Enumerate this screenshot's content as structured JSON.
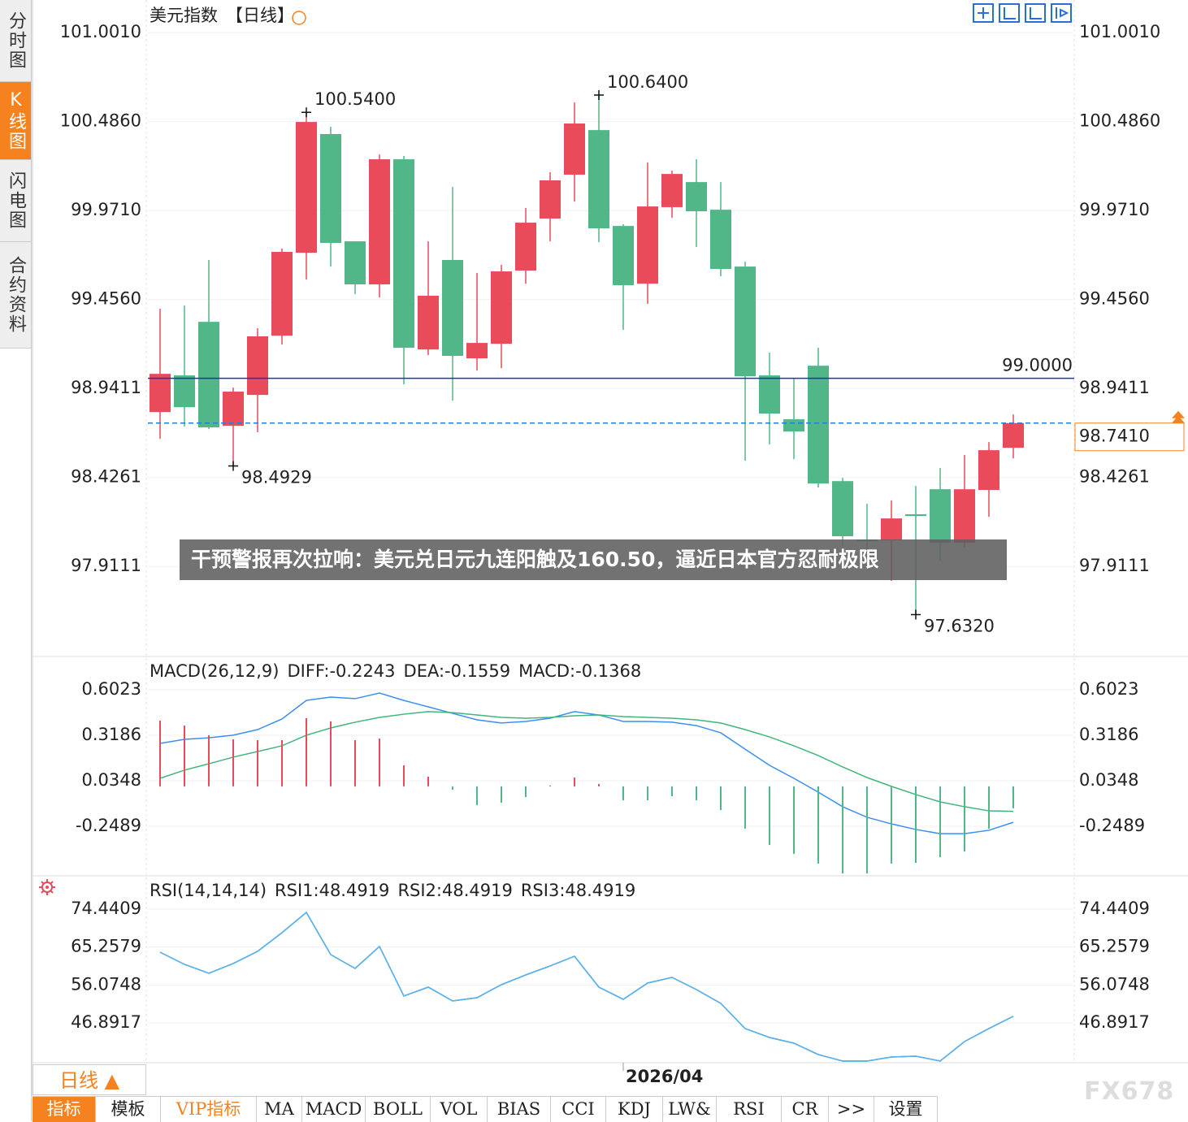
{
  "sidebar": [
    "分时图",
    "K线图",
    "闪电图",
    "合约资料"
  ],
  "headline": "干预警报再次拉响：美元兑日元九连阳触及160.50，逼近日本官方忍耐极限",
  "watermark": "FX678",
  "period_tab": "日线 ▲",
  "toolbar": [
    "指标",
    "模板",
    "VIP指标",
    "MA",
    "MACD",
    "BOLL",
    "VOL",
    "BIAS",
    "CCI",
    "KDJ",
    "LW&",
    "RSI",
    "CR",
    ">>",
    "设置"
  ],
  "chart_data": [
    {
      "type": "candlestick",
      "title": "美元指数",
      "subtitle": "【日线】",
      "categories": [
        null,
        null,
        null,
        null,
        null,
        null,
        null,
        null,
        null,
        null,
        null,
        null,
        null,
        null,
        null,
        null,
        null,
        null,
        null,
        "2026/04",
        null,
        null,
        null,
        null,
        null,
        null,
        null,
        null,
        null,
        null,
        null,
        null,
        null,
        null,
        null,
        null
      ],
      "open": [
        98.805,
        99.017,
        99.327,
        98.725,
        98.904,
        99.247,
        99.727,
        100.414,
        99.793,
        99.544,
        100.268,
        99.167,
        99.685,
        99.116,
        99.2,
        99.624,
        99.925,
        100.179,
        100.437,
        99.882,
        99.548,
        99.991,
        100.136,
        99.976,
        99.647,
        99.017,
        98.763,
        99.073,
        98.405,
        98.067,
        98.062,
        98.213,
        98.358,
        98.048,
        98.354,
        98.598
      ],
      "high": [
        99.403,
        99.421,
        99.685,
        98.946,
        99.29,
        99.751,
        100.54,
        100.456,
        99.793,
        100.296,
        100.287,
        99.793,
        100.108,
        99.61,
        99.657,
        99.986,
        100.193,
        100.597,
        100.64,
        99.892,
        100.249,
        100.202,
        100.268,
        100.136,
        99.675,
        99.149,
        98.998,
        99.177,
        98.424,
        98.274,
        98.293,
        98.377,
        98.481,
        98.556,
        98.631,
        98.791
      ],
      "low": [
        98.65,
        98.721,
        98.706,
        98.4929,
        98.688,
        99.196,
        99.572,
        99.647,
        99.487,
        99.468,
        98.965,
        99.135,
        98.871,
        99.045,
        99.059,
        99.548,
        99.793,
        100.024,
        99.788,
        99.28,
        99.431,
        99.929,
        99.76,
        99.591,
        98.523,
        98.617,
        98.532,
        98.368,
        98.029,
        97.944,
        97.827,
        97.632,
        97.944,
        98.02,
        98.198,
        98.537
      ],
      "close": [
        99.026,
        98.833,
        98.716,
        98.923,
        99.243,
        99.732,
        100.484,
        99.784,
        99.544,
        100.268,
        99.177,
        99.478,
        99.13,
        99.205,
        99.619,
        99.901,
        100.146,
        100.475,
        99.868,
        99.539,
        99.995,
        100.183,
        99.967,
        99.633,
        99.012,
        98.796,
        98.692,
        98.391,
        98.086,
        98.057,
        98.189,
        98.203,
        98.048,
        98.358,
        98.584,
        98.741
      ],
      "up_color": "#e94b5b",
      "down_color": "#52b788",
      "ylim": [
        97.39,
        101.19
      ],
      "yticks": [
        {
          "value": 101.001,
          "label": "101.0010"
        },
        {
          "value": 100.486,
          "label": "100.4860"
        },
        {
          "value": 99.971,
          "label": "99.9710"
        },
        {
          "value": 99.456,
          "label": "99.4560"
        },
        98.9411,
        98.4261,
        97.9111
      ],
      "grid": true,
      "reference_lines": [
        {
          "value": 99,
          "label": "99.0000",
          "color": "#1f2fc8",
          "style": "solid"
        },
        {
          "value": 98.741,
          "label": "98.7410",
          "color": "#1e7fe0",
          "style": "dashed",
          "label_color": "#f5821f"
        }
      ],
      "annotations": [
        {
          "value": 100.54,
          "label": "100.5400",
          "color": "#e94b5b"
        },
        {
          "value": 100.64,
          "label": "100.6400",
          "color": "#e94b5b"
        },
        {
          "value": 98.4929,
          "label": "98.4929",
          "color": "#52b788"
        },
        {
          "value": 97.632,
          "label": "97.6320",
          "color": "#52b788"
        }
      ]
    },
    {
      "type": "macd",
      "title": "MACD(26,12,9)",
      "ylim": [
        -0.548,
        0.8
      ],
      "yticks": [
        0.6023,
        0.3186,
        0.0348,
        -0.2489
      ],
      "grid": true,
      "series": [
        {
          "name": "DIFF:-0.2243",
          "color": "#3b8ff0",
          "values": [
            0.268,
            0.293,
            0.303,
            0.319,
            0.354,
            0.42,
            0.536,
            0.557,
            0.547,
            0.582,
            0.536,
            0.496,
            0.455,
            0.415,
            0.395,
            0.405,
            0.425,
            0.466,
            0.445,
            0.405,
            0.405,
            0.4,
            0.379,
            0.334,
            0.232,
            0.131,
            0.05,
            -0.036,
            -0.127,
            -0.193,
            -0.234,
            -0.269,
            -0.295,
            -0.295,
            -0.274,
            -0.2243
          ]
        },
        {
          "name": "DEA:-0.1559",
          "color": "#3fb67a",
          "values": [
            0.05,
            0.101,
            0.141,
            0.182,
            0.217,
            0.253,
            0.319,
            0.364,
            0.4,
            0.43,
            0.45,
            0.466,
            0.46,
            0.445,
            0.43,
            0.425,
            0.43,
            0.44,
            0.445,
            0.435,
            0.43,
            0.425,
            0.415,
            0.395,
            0.354,
            0.308,
            0.253,
            0.192,
            0.121,
            0.055,
            0.0,
            -0.051,
            -0.097,
            -0.127,
            -0.153,
            -0.1559
          ]
        },
        {
          "name": "MACD:-0.1368",
          "color": "#6ab4f5",
          "bars": true,
          "positive_color": "#e94b5b",
          "negative_color": "#52b788",
          "values": [
            0.41,
            0.379,
            0.319,
            0.293,
            0.288,
            0.288,
            0.425,
            0.405,
            0.288,
            0.298,
            0.131,
            0.06,
            -0.021,
            -0.117,
            -0.102,
            -0.067,
            0.005,
            0.055,
            0.015,
            -0.087,
            -0.087,
            -0.062,
            -0.087,
            -0.148,
            -0.264,
            -0.366,
            -0.421,
            -0.482,
            -0.543,
            -0.543,
            -0.482,
            -0.477,
            -0.442,
            -0.406,
            -0.264,
            -0.1368
          ]
        }
      ]
    },
    {
      "type": "line",
      "title": "RSI(14,14,14)",
      "ylim": [
        37.25,
        82.11
      ],
      "yticks": [
        74.4409,
        65.2579,
        56.0748,
        46.8917
      ],
      "grid": true,
      "series": [
        {
          "name": "RSI1:48.4919",
          "color": "#3b8ff0",
          "values": [
            64.01,
            61.06,
            58.9,
            61.26,
            64.21,
            68.73,
            73.65,
            63.42,
            60.08,
            65.39,
            53.39,
            55.55,
            52.21,
            52.99,
            56.14,
            58.5,
            60.67,
            63.03,
            55.55,
            52.6,
            56.54,
            57.91,
            54.96,
            51.62,
            45.52,
            43.35,
            41.98,
            39.22,
            37.65,
            37.65,
            38.63,
            38.83,
            37.65,
            42.37,
            45.52,
            48.4919
          ]
        },
        {
          "name": "RSI2:48.4919",
          "color": "#52c47a",
          "values": [
            64.01,
            61.06,
            58.9,
            61.26,
            64.21,
            68.73,
            73.65,
            63.42,
            60.08,
            65.39,
            53.39,
            55.55,
            52.21,
            52.99,
            56.14,
            58.5,
            60.67,
            63.03,
            55.55,
            52.6,
            56.54,
            57.91,
            54.96,
            51.62,
            45.52,
            43.35,
            41.98,
            39.22,
            37.65,
            37.65,
            38.63,
            38.83,
            37.65,
            42.37,
            45.52,
            48.4919
          ]
        },
        {
          "name": "RSI3:48.4919",
          "color": "#5fb0f0",
          "values": [
            64.01,
            61.06,
            58.9,
            61.26,
            64.21,
            68.73,
            73.65,
            63.42,
            60.08,
            65.39,
            53.39,
            55.55,
            52.21,
            52.99,
            56.14,
            58.5,
            60.67,
            63.03,
            55.55,
            52.6,
            56.54,
            57.91,
            54.96,
            51.62,
            45.52,
            43.35,
            41.98,
            39.22,
            37.65,
            37.65,
            38.63,
            38.83,
            37.65,
            42.37,
            45.52,
            48.4919
          ]
        }
      ]
    }
  ]
}
